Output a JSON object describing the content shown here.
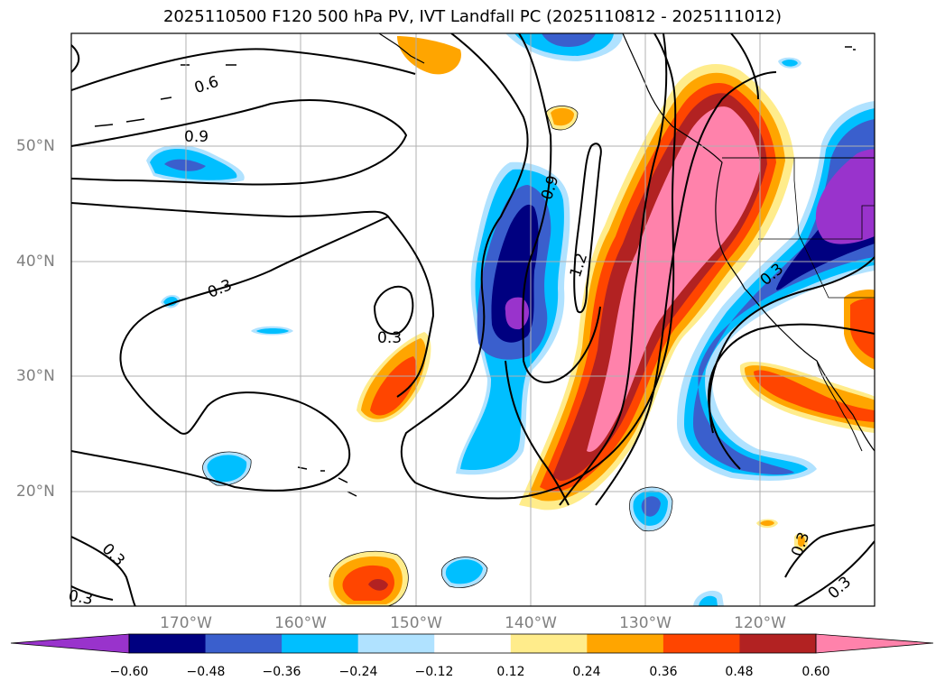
{
  "title": "2025110500 F120 500 hPa PV, IVT Landfall PC (2025110812 - 2025111012)",
  "map": {
    "lat_labels": [
      "50°N",
      "40°N",
      "30°N",
      "20°N"
    ],
    "lon_labels": [
      "170°W",
      "160°W",
      "150°W",
      "140°W",
      "130°W",
      "120°W"
    ],
    "contour_labels": [
      "0.6",
      "0.9",
      "0.3",
      "0.3",
      "0.9",
      "1.2",
      "0.3",
      "0.3",
      "0.3",
      "0.3",
      "0.3"
    ]
  },
  "colorbar": {
    "ticks": [
      "−0.60",
      "−0.48",
      "−0.36",
      "−0.24",
      "−0.12",
      "0.12",
      "0.24",
      "0.36",
      "0.48",
      "0.60"
    ],
    "colors": {
      "lt_-0.60": "#9933cc",
      "-0.60_-0.48": "#000080",
      "-0.48_-0.36": "#3a5fcd",
      "-0.36_-0.24": "#00bfff",
      "-0.24_-0.12": "#b0e2ff",
      "-0.12_0.12": "#ffffff",
      "0.12_0.24": "#ffec8b",
      "0.24_0.36": "#ffa500",
      "0.36_0.48": "#ff4500",
      "0.48_0.60": "#b22222",
      "gt_0.60": "#ff82ab"
    }
  }
}
